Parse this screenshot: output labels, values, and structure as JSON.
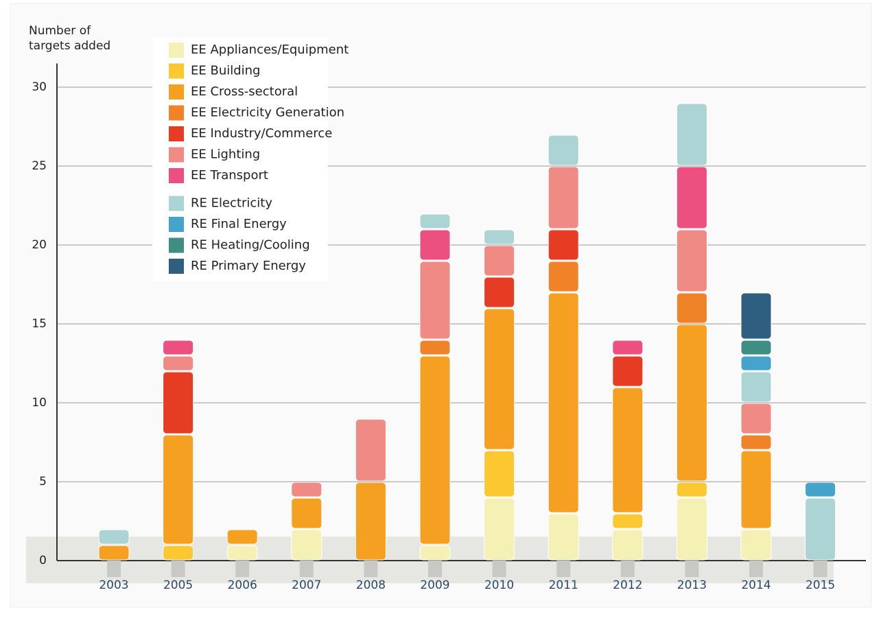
{
  "chart_data": {
    "type": "stacked_bar",
    "y_axis_label": "Number of targets added",
    "categories": [
      "2003",
      "2005",
      "2006",
      "2007",
      "2008",
      "2009",
      "2010",
      "2011",
      "2012",
      "2013",
      "2014",
      "2015"
    ],
    "series": [
      {
        "name": "EE Appliances/Equipment",
        "color": "#f5f0b4",
        "values": [
          0,
          0,
          1,
          2,
          0,
          1,
          4,
          3,
          2,
          4,
          2,
          0
        ]
      },
      {
        "name": "EE Building",
        "color": "#fcc832",
        "values": [
          0,
          1,
          0,
          0,
          0,
          0,
          3,
          0,
          1,
          1,
          0,
          0
        ]
      },
      {
        "name": "EE Cross-sectoral",
        "color": "#f5a020",
        "values": [
          1,
          7,
          1,
          2,
          5,
          12,
          9,
          14,
          8,
          10,
          5,
          0
        ]
      },
      {
        "name": "EE Electricity Generation",
        "color": "#f08228",
        "values": [
          0,
          0,
          0,
          0,
          0,
          1,
          0,
          2,
          0,
          2,
          1,
          0
        ]
      },
      {
        "name": "EE Industry/Commerce",
        "color": "#e63c24",
        "values": [
          0,
          4,
          0,
          0,
          0,
          0,
          2,
          2,
          2,
          0,
          0,
          0
        ]
      },
      {
        "name": "EE Lighting",
        "color": "#f08a84",
        "values": [
          0,
          1,
          0,
          1,
          4,
          5,
          2,
          4,
          0,
          4,
          2,
          0
        ]
      },
      {
        "name": "EE Transport",
        "color": "#ec5080",
        "values": [
          0,
          1,
          0,
          0,
          0,
          2,
          0,
          0,
          1,
          4,
          0,
          0
        ]
      },
      {
        "name": "RE Electricity",
        "color": "#acd4d4",
        "values": [
          1,
          0,
          0,
          0,
          0,
          1,
          1,
          2,
          0,
          4,
          2,
          4
        ]
      },
      {
        "name": "RE Final Energy",
        "color": "#44a4cc",
        "values": [
          0,
          0,
          0,
          0,
          0,
          0,
          0,
          0,
          0,
          0,
          1,
          1
        ]
      },
      {
        "name": "RE Heating/Cooling",
        "color": "#3e8e84",
        "values": [
          0,
          0,
          0,
          0,
          0,
          0,
          0,
          0,
          0,
          0,
          1,
          0
        ]
      },
      {
        "name": "RE Primary Energy",
        "color": "#2e5e80",
        "values": [
          0,
          0,
          0,
          0,
          0,
          0,
          0,
          0,
          0,
          0,
          3,
          0
        ]
      }
    ],
    "ylim": [
      0,
      31.5
    ],
    "yticks": [
      0,
      5,
      10,
      15,
      20,
      25,
      30
    ],
    "grid": true
  }
}
